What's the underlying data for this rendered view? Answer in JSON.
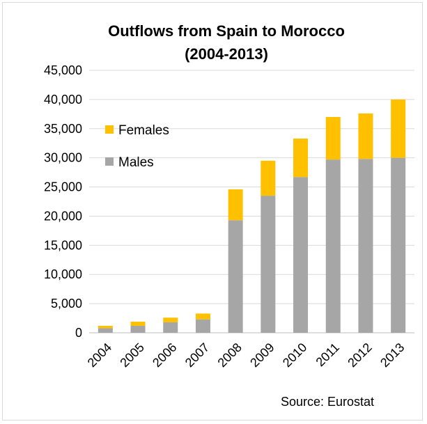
{
  "chart_data": {
    "type": "bar",
    "stacked": true,
    "title": "Outflows from Spain to Morocco",
    "subtitle": "(2004-2013)",
    "source": "Source: Eurostat",
    "xlabel": "",
    "ylabel": "",
    "ylim": [
      0,
      45000
    ],
    "yticks": [
      0,
      5000,
      10000,
      15000,
      20000,
      25000,
      30000,
      35000,
      40000,
      45000
    ],
    "ytick_labels": [
      "0",
      "5,000",
      "10,000",
      "15,000",
      "20,000",
      "25,000",
      "30,000",
      "35,000",
      "40,000",
      "45,000"
    ],
    "grid": true,
    "legend_position": "upper-left",
    "categories": [
      "2004",
      "2005",
      "2006",
      "2007",
      "2008",
      "2009",
      "2010",
      "2011",
      "2012",
      "2013"
    ],
    "series": [
      {
        "name": "Males",
        "color": "#a6a6a6",
        "values": [
          800,
          1200,
          1800,
          2300,
          19300,
          23500,
          26700,
          29700,
          29800,
          30000
        ]
      },
      {
        "name": "Females",
        "color": "#ffc000",
        "values": [
          400,
          700,
          800,
          1000,
          5300,
          6000,
          6600,
          7300,
          7800,
          10000
        ]
      }
    ],
    "legend_order": [
      "Females",
      "Males"
    ]
  }
}
